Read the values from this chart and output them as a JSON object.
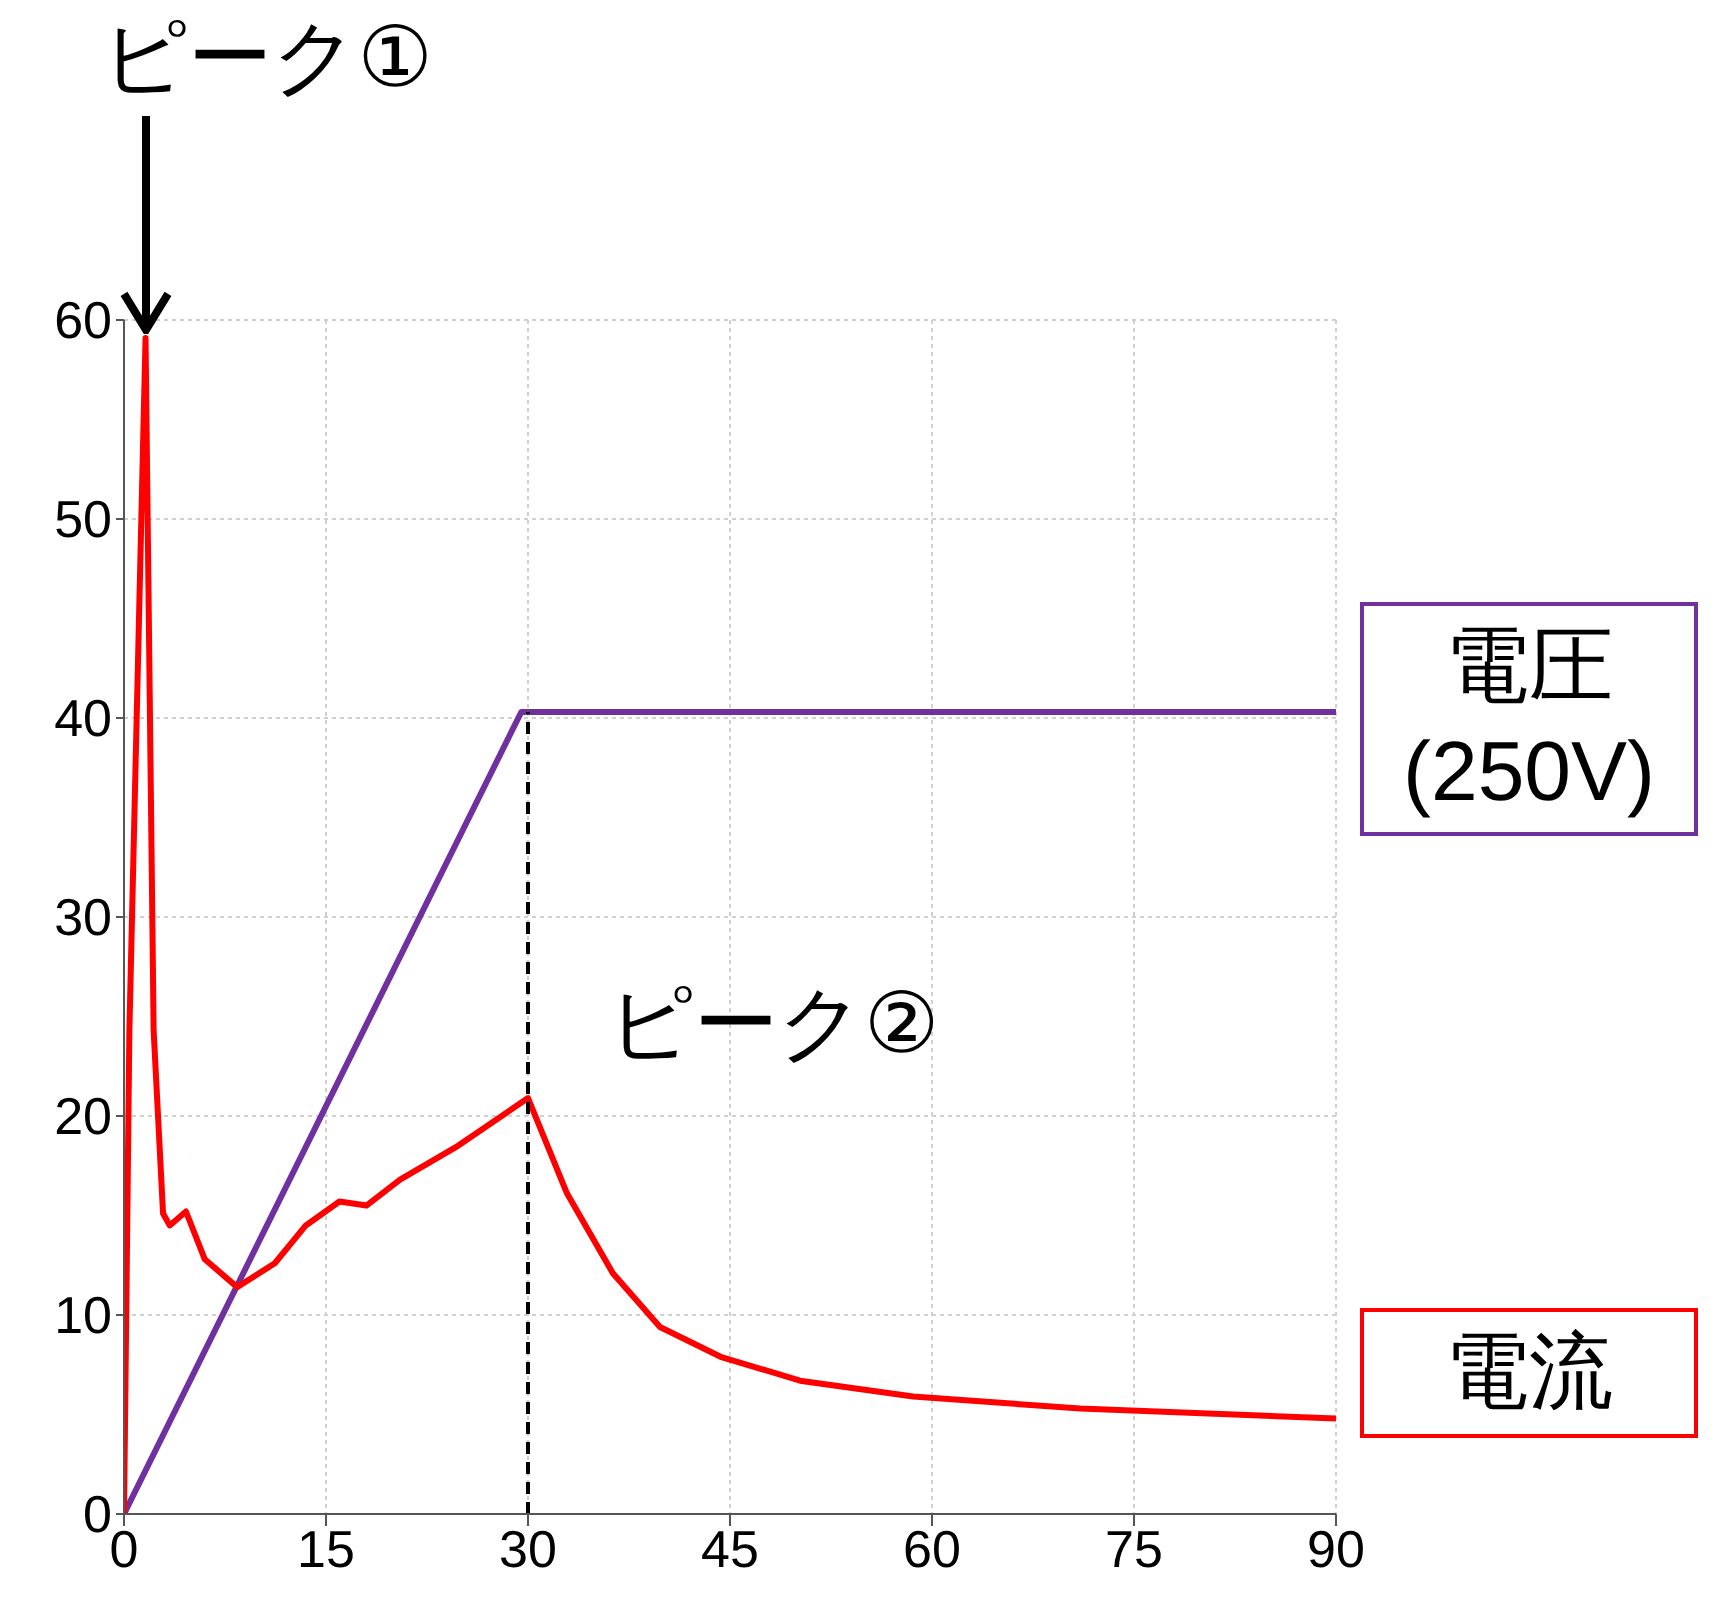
{
  "chart_data": {
    "type": "line",
    "grid": true,
    "legend": false,
    "xlim": [
      0,
      90
    ],
    "xticks": [
      0,
      15,
      30,
      45,
      60,
      75,
      90
    ],
    "ylim": [
      0,
      60
    ],
    "yticks": [
      0,
      10,
      20,
      30,
      40,
      50,
      60
    ],
    "annotations": [
      {
        "text": "ピーク①",
        "x": 1.6,
        "y": 59.1
      },
      {
        "text": "ピーク②",
        "x": 30,
        "y": 20.9
      }
    ],
    "series": [
      {
        "name": "電圧 (250V)",
        "color": "#7030a0",
        "x": [
          0,
          29.5,
          90
        ],
        "values": [
          0,
          40.3,
          40.3
        ]
      },
      {
        "name": "電流",
        "color": "#ff0000",
        "x": [
          0,
          0.4,
          1.6,
          2.2,
          2.9,
          3.4,
          4.6,
          6,
          8.4,
          11.2,
          13.5,
          16,
          18,
          20.5,
          24.8,
          30,
          32.9,
          36.3,
          39.8,
          44.3,
          50.2,
          58.6,
          71,
          90
        ],
        "values": [
          0,
          24.3,
          59.1,
          24.3,
          15.1,
          14.5,
          15.2,
          12.8,
          11.4,
          12.6,
          14.5,
          15.7,
          15.5,
          16.8,
          18.5,
          20.9,
          16.1,
          12.1,
          9.4,
          7.9,
          6.7,
          5.9,
          5.3,
          4.8
        ]
      },
      {
        "color": "#000000",
        "line_style": "dashed",
        "x": [
          30,
          30
        ],
        "values": [
          0,
          40.3
        ]
      }
    ]
  }
}
